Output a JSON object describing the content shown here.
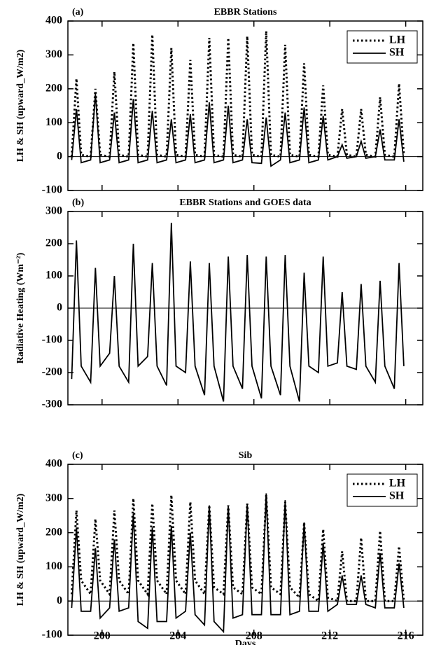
{
  "chart_data": [
    {
      "type": "line",
      "panel": "(a)",
      "title": "EBBR Stations",
      "ylabel": "LH & SH (upward_W/m2)",
      "x": [
        198.4,
        198.65,
        198.9,
        199.4,
        199.65,
        199.9,
        200.4,
        200.65,
        200.9,
        201.4,
        201.65,
        201.9,
        202.4,
        202.65,
        202.9,
        203.4,
        203.65,
        203.9,
        204.4,
        204.65,
        204.9,
        205.4,
        205.65,
        205.9,
        206.4,
        206.65,
        206.9,
        207.4,
        207.65,
        207.9,
        208.4,
        208.65,
        208.9,
        209.4,
        209.65,
        209.9,
        210.4,
        210.65,
        210.9,
        211.4,
        211.65,
        211.9,
        212.4,
        212.65,
        212.9,
        213.4,
        213.65,
        213.9,
        214.4,
        214.65,
        214.9,
        215.4,
        215.65,
        215.9
      ],
      "xlim": [
        198.2,
        216.9
      ],
      "ylim": [
        -100,
        400
      ],
      "yticks": [
        -100,
        0,
        100,
        200,
        300,
        400
      ],
      "legend": "top-right",
      "series": [
        {
          "name": "LH",
          "color": "#000000",
          "dash": "dotted",
          "values": [
            0,
            230,
            5,
            0,
            200,
            5,
            0,
            250,
            5,
            0,
            335,
            5,
            0,
            360,
            5,
            0,
            320,
            5,
            0,
            285,
            5,
            0,
            350,
            5,
            0,
            350,
            5,
            0,
            355,
            5,
            0,
            370,
            5,
            0,
            330,
            5,
            0,
            275,
            5,
            0,
            210,
            5,
            0,
            140,
            5,
            0,
            140,
            5,
            0,
            175,
            5,
            0,
            215,
            5
          ]
        },
        {
          "name": "SH",
          "color": "#000000",
          "dash": "solid",
          "values": [
            -10,
            140,
            -18,
            -10,
            185,
            -18,
            -10,
            130,
            -18,
            -10,
            170,
            -18,
            -10,
            135,
            -18,
            -10,
            110,
            -18,
            -10,
            125,
            -18,
            -10,
            160,
            -18,
            -10,
            150,
            -18,
            -10,
            110,
            -18,
            -20,
            115,
            -28,
            -10,
            130,
            -18,
            -10,
            145,
            -18,
            -10,
            120,
            -10,
            0,
            35,
            -5,
            0,
            45,
            -5,
            0,
            80,
            -10,
            -10,
            110,
            -15
          ]
        }
      ]
    },
    {
      "type": "line",
      "panel": "(b)",
      "title": "EBBR Stations and GOES data",
      "ylabel": "Radiative Heating (Wm⁻²)",
      "x": [
        198.4,
        198.65,
        198.9,
        199.4,
        199.65,
        199.9,
        200.4,
        200.65,
        200.9,
        201.4,
        201.65,
        201.9,
        202.4,
        202.65,
        202.9,
        203.4,
        203.65,
        203.9,
        204.4,
        204.65,
        204.9,
        205.4,
        205.65,
        205.9,
        206.4,
        206.65,
        206.9,
        207.4,
        207.65,
        207.9,
        208.4,
        208.65,
        208.9,
        209.4,
        209.65,
        209.9,
        210.4,
        210.65,
        210.9,
        211.4,
        211.65,
        211.9,
        212.4,
        212.65,
        212.9,
        213.4,
        213.65,
        213.9,
        214.4,
        214.65,
        214.9,
        215.4,
        215.65,
        215.9
      ],
      "xlim": [
        198.2,
        216.9
      ],
      "ylim": [
        -300,
        300
      ],
      "yticks": [
        -300,
        -200,
        -100,
        0,
        100,
        200,
        300
      ],
      "series": [
        {
          "name": "Radiative Heating",
          "color": "#000000",
          "dash": "solid",
          "values": [
            -220,
            210,
            -180,
            -230,
            125,
            -180,
            -140,
            100,
            -180,
            -230,
            200,
            -180,
            -150,
            140,
            -180,
            -240,
            265,
            -180,
            -200,
            145,
            -180,
            -270,
            140,
            -180,
            -290,
            160,
            -180,
            -250,
            165,
            -180,
            -280,
            160,
            -180,
            -270,
            165,
            -180,
            -290,
            110,
            -180,
            -200,
            160,
            -180,
            -170,
            50,
            -180,
            -190,
            75,
            -180,
            -230,
            85,
            -180,
            -250,
            140,
            -180
          ]
        }
      ]
    },
    {
      "type": "line",
      "panel": "(c)",
      "title": "Sib",
      "ylabel": "LH & SH (upward_W/m2)",
      "xlabel": "Days",
      "x": [
        198.4,
        198.65,
        198.9,
        199.4,
        199.65,
        199.9,
        200.4,
        200.65,
        200.9,
        201.4,
        201.65,
        201.9,
        202.4,
        202.65,
        202.9,
        203.4,
        203.65,
        203.9,
        204.4,
        204.65,
        204.9,
        205.4,
        205.65,
        205.9,
        206.4,
        206.65,
        206.9,
        207.4,
        207.65,
        207.9,
        208.4,
        208.65,
        208.9,
        209.4,
        209.65,
        209.9,
        210.4,
        210.65,
        210.9,
        211.4,
        211.65,
        211.9,
        212.4,
        212.65,
        212.9,
        213.4,
        213.65,
        213.9,
        214.4,
        214.65,
        214.9,
        215.4,
        215.65,
        215.9
      ],
      "xlim": [
        198.2,
        216.9
      ],
      "ylim": [
        -100,
        400
      ],
      "xticks": [
        200,
        204,
        208,
        212,
        216
      ],
      "yticks": [
        -100,
        0,
        100,
        200,
        300,
        400
      ],
      "legend": "top-right",
      "series": [
        {
          "name": "LH",
          "color": "#000000",
          "dash": "dotted",
          "values": [
            20,
            265,
            60,
            20,
            240,
            60,
            20,
            265,
            60,
            20,
            300,
            60,
            20,
            285,
            60,
            20,
            310,
            60,
            20,
            290,
            60,
            20,
            280,
            40,
            20,
            280,
            40,
            20,
            285,
            40,
            20,
            310,
            40,
            20,
            290,
            40,
            10,
            230,
            20,
            0,
            210,
            10,
            0,
            145,
            0,
            0,
            185,
            0,
            0,
            205,
            0,
            0,
            160,
            0
          ]
        },
        {
          "name": "SH",
          "color": "#000000",
          "dash": "solid",
          "values": [
            -20,
            215,
            -30,
            -30,
            155,
            -50,
            -20,
            180,
            -30,
            -20,
            255,
            -60,
            -80,
            215,
            -60,
            -60,
            220,
            -50,
            -30,
            200,
            -40,
            -70,
            280,
            -60,
            -90,
            280,
            -50,
            -40,
            285,
            -40,
            -40,
            315,
            -40,
            -40,
            295,
            -40,
            -30,
            230,
            -30,
            -30,
            170,
            -30,
            -10,
            75,
            -10,
            -10,
            75,
            -10,
            -20,
            140,
            -20,
            -20,
            110,
            -20
          ]
        }
      ]
    }
  ]
}
